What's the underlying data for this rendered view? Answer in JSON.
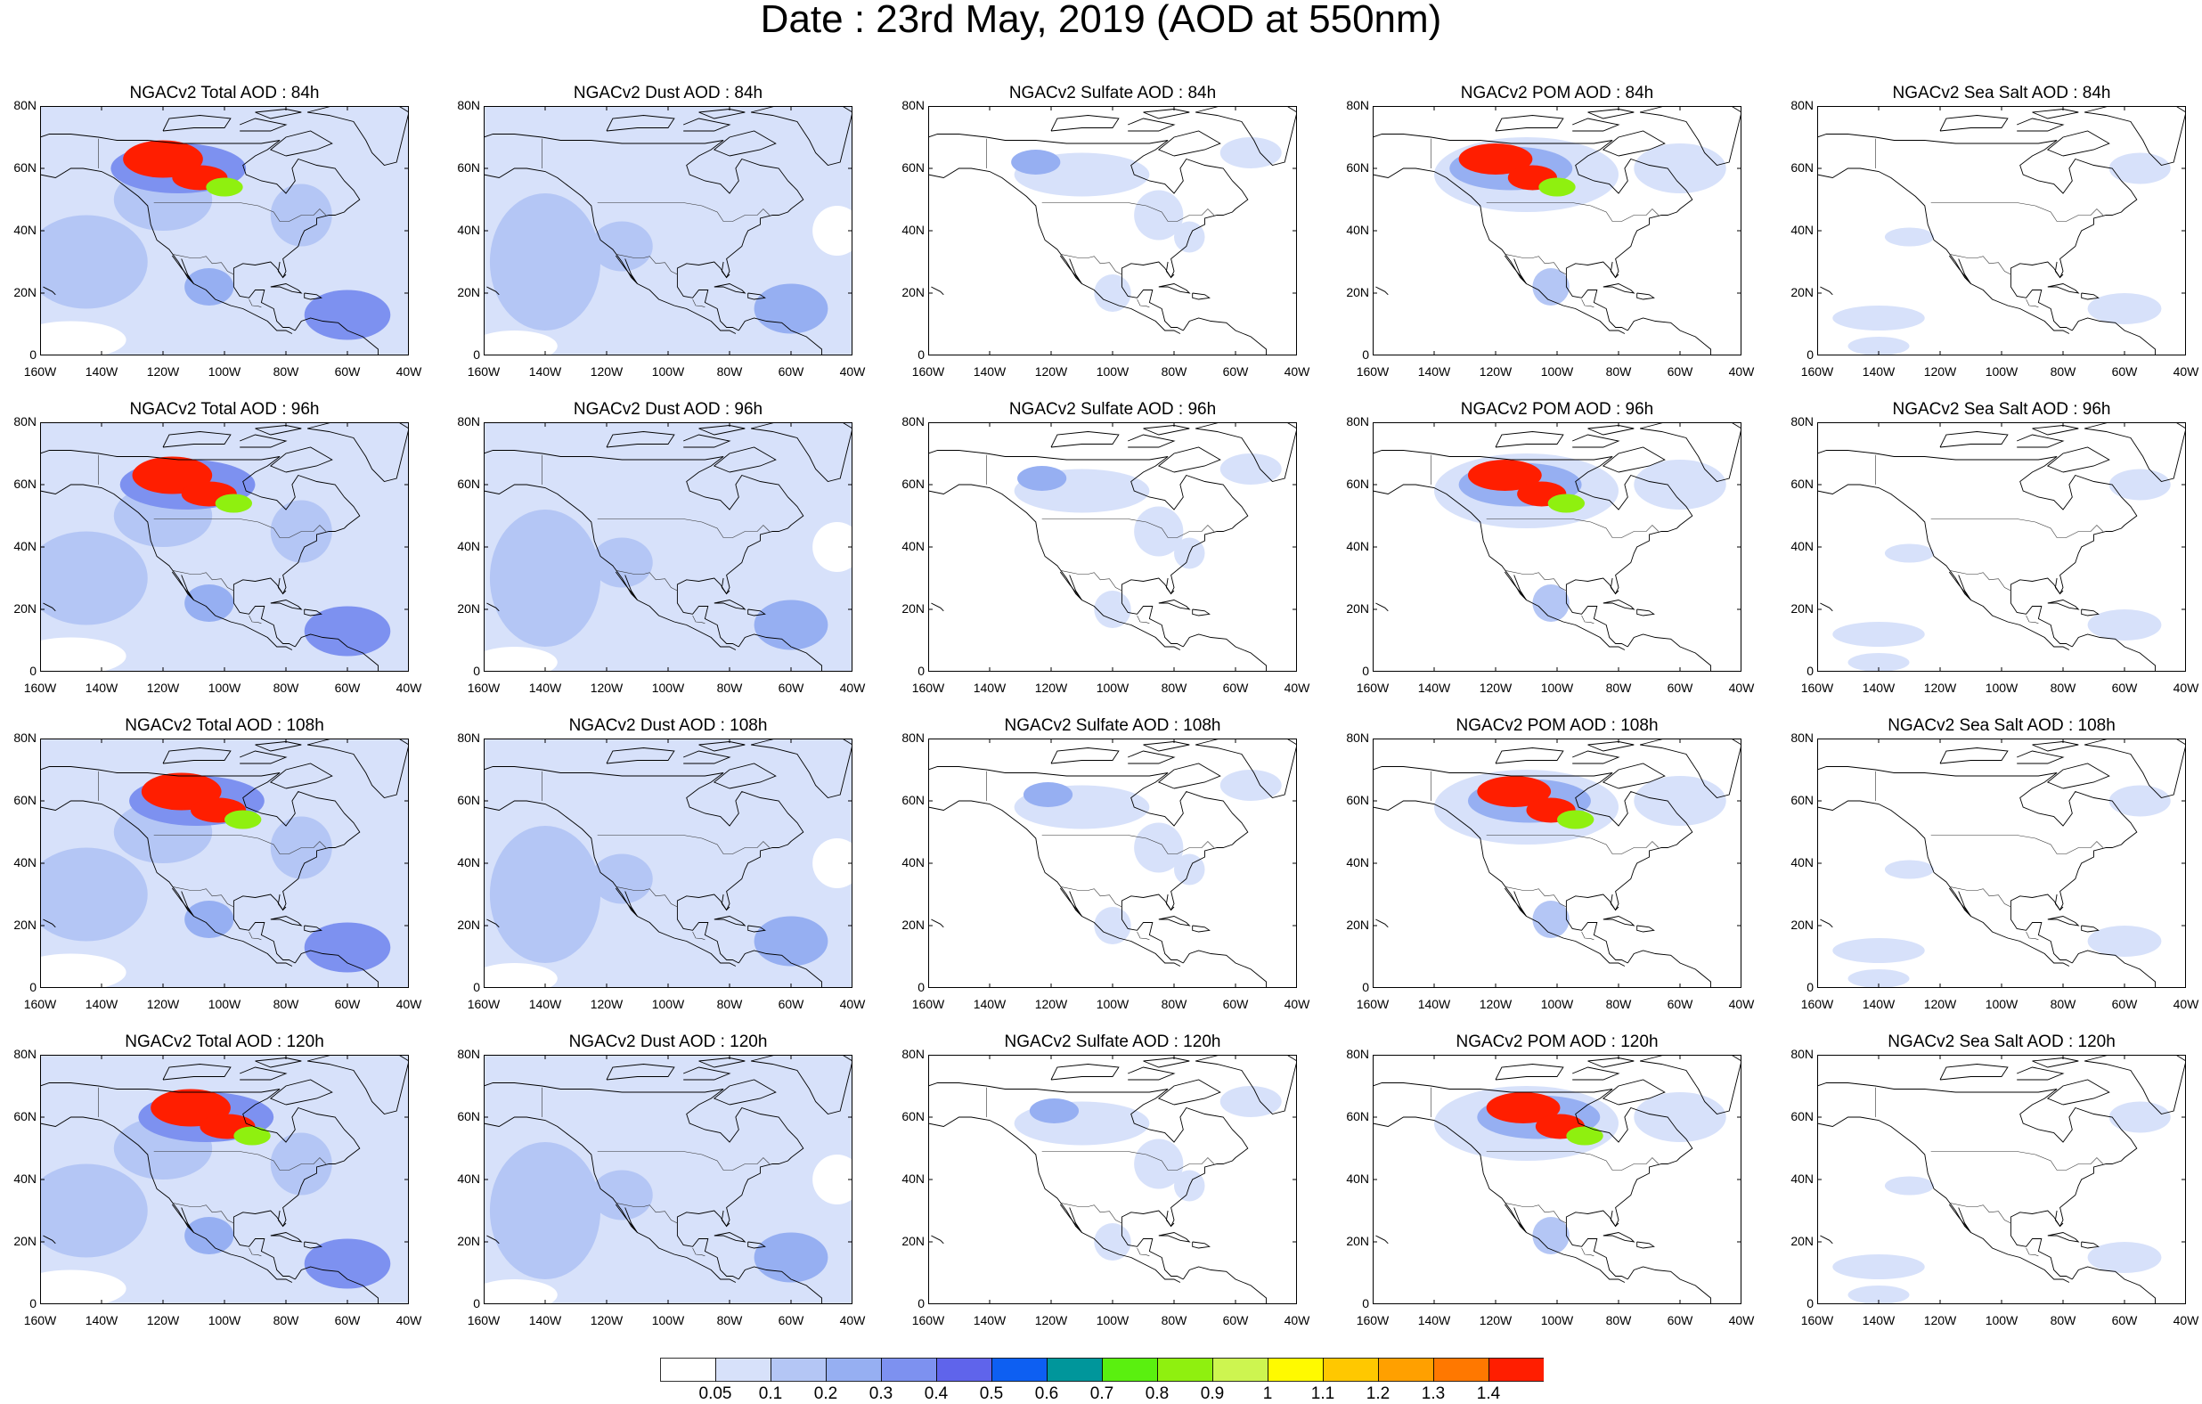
{
  "title": "Date : 23rd May, 2019 (AOD at 550nm)",
  "rows": [
    {
      "hour": "84h",
      "titles": [
        "NGACv2 Total AOD : 84h",
        "NGACv2 Dust AOD : 84h",
        "NGACv2 Sulfate AOD : 84h",
        "NGACv2 POM AOD : 84h",
        "NGACv2 Sea Salt AOD : 84h"
      ]
    },
    {
      "hour": "96h",
      "titles": [
        "NGACv2 Total AOD : 96h",
        "NGACv2 Dust AOD : 96h",
        "NGACv2 Sulfate AOD : 96h",
        "NGACv2 POM AOD : 96h",
        "NGACv2 Sea Salt AOD : 96h"
      ]
    },
    {
      "hour": "108h",
      "titles": [
        "NGACv2 Total AOD : 108h",
        "NGACv2 Dust AOD : 108h",
        "NGACv2 Sulfate AOD : 108h",
        "NGACv2 POM AOD : 108h",
        "NGACv2 Sea Salt AOD : 108h"
      ]
    },
    {
      "hour": "120h",
      "titles": [
        "NGACv2 Total AOD : 120h",
        "NGACv2 Dust AOD : 120h",
        "NGACv2 Sulfate AOD : 120h",
        "NGACv2 POM AOD : 120h",
        "NGACv2 Sea Salt  AOD : 120h"
      ]
    }
  ],
  "columns": [
    "Total",
    "Dust",
    "Sulfate",
    "POM",
    "Sea Salt"
  ],
  "lat_ticks": [
    "80N",
    "60N",
    "40N",
    "20N",
    "0"
  ],
  "lon_ticks": [
    "160W",
    "140W",
    "120W",
    "100W",
    "80W",
    "60W",
    "40W"
  ],
  "colorbar": {
    "labels": [
      "0.05",
      "0.1",
      "0.2",
      "0.3",
      "0.4",
      "0.5",
      "0.6",
      "0.7",
      "0.8",
      "0.9",
      "1",
      "1.1",
      "1.2",
      "1.3",
      "1.4"
    ],
    "colors": [
      "#ffffff",
      "#d7e1fa",
      "#b4c6f5",
      "#96aff2",
      "#7d91f0",
      "#5f64eb",
      "#0d5ff2",
      "#00969b",
      "#5af00f",
      "#8ff00f",
      "#cdf550",
      "#fffa00",
      "#ffc800",
      "#ffa000",
      "#ff7800",
      "#ff1e00"
    ]
  }
}
